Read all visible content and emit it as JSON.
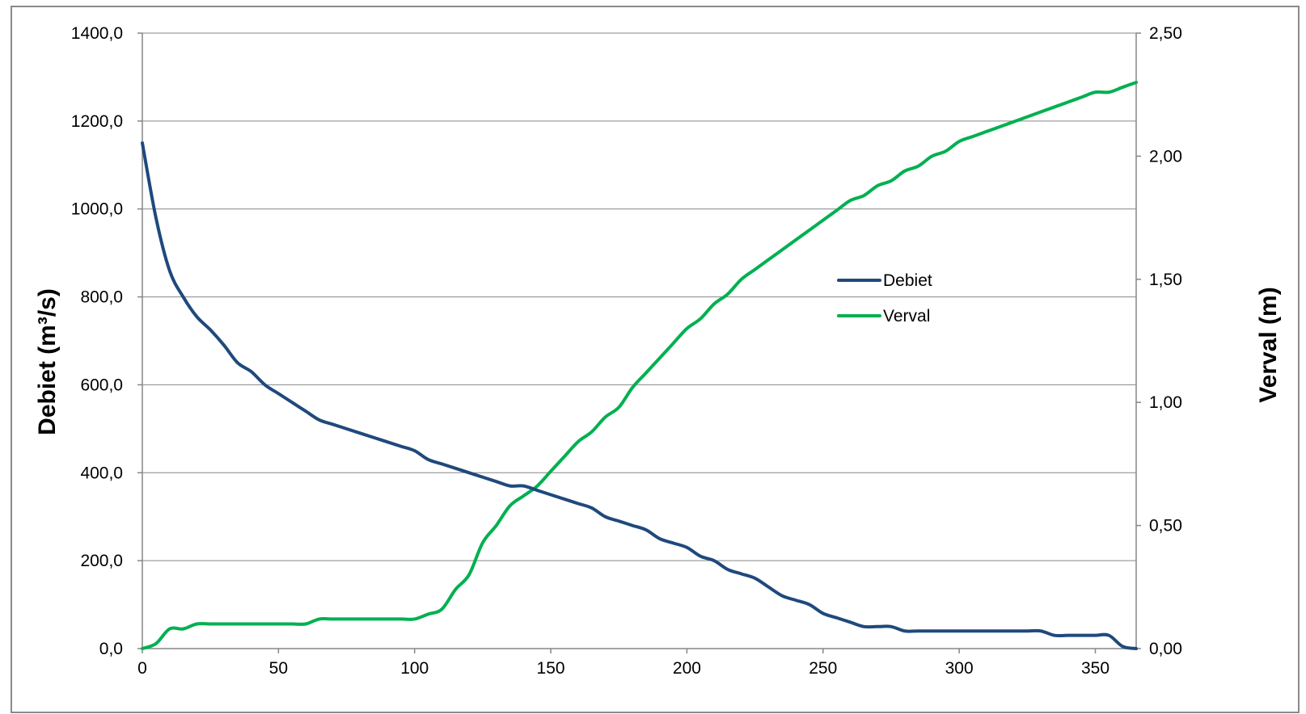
{
  "chart_data": {
    "type": "line",
    "title": "",
    "xlabel": "",
    "ylabel": "Debiet (m³/s)",
    "y2label": "Verval (m)",
    "xlim": [
      0,
      365
    ],
    "ylim": [
      0,
      1400
    ],
    "y2lim": [
      0,
      2.5
    ],
    "grid": "horizontal",
    "legend_position": "center-right",
    "x_ticks": [
      "0",
      "50",
      "100",
      "150",
      "200",
      "250",
      "300",
      "350"
    ],
    "y_ticks": [
      "0,0",
      "200,0",
      "400,0",
      "600,0",
      "800,0",
      "1000,0",
      "1200,0",
      "1400,0"
    ],
    "y2_ticks": [
      "0,00",
      "0,50",
      "1,00",
      "1,50",
      "2,00",
      "2,50"
    ],
    "series": [
      {
        "name": "Debiet",
        "axis": "left",
        "color": "#1F497D",
        "x": [
          0,
          5,
          10,
          15,
          20,
          25,
          30,
          35,
          40,
          45,
          50,
          55,
          60,
          65,
          70,
          75,
          80,
          85,
          90,
          95,
          100,
          105,
          110,
          115,
          120,
          125,
          130,
          135,
          140,
          145,
          150,
          155,
          160,
          165,
          170,
          175,
          180,
          185,
          190,
          195,
          200,
          205,
          210,
          215,
          220,
          225,
          230,
          235,
          240,
          245,
          250,
          255,
          260,
          265,
          270,
          275,
          280,
          285,
          290,
          295,
          300,
          305,
          310,
          315,
          320,
          325,
          330,
          335,
          340,
          345,
          350,
          355,
          360,
          365
        ],
        "values": [
          1150,
          980,
          860,
          800,
          755,
          725,
          690,
          650,
          630,
          600,
          580,
          560,
          540,
          520,
          510,
          500,
          490,
          480,
          470,
          460,
          450,
          430,
          420,
          410,
          400,
          390,
          380,
          370,
          370,
          360,
          350,
          340,
          330,
          320,
          300,
          290,
          280,
          270,
          250,
          240,
          230,
          210,
          200,
          180,
          170,
          160,
          140,
          120,
          110,
          100,
          80,
          70,
          60,
          50,
          50,
          50,
          40,
          40,
          40,
          40,
          40,
          40,
          40,
          40,
          40,
          40,
          40,
          30,
          30,
          30,
          30,
          30,
          5,
          0
        ]
      },
      {
        "name": "Verval",
        "axis": "right",
        "color": "#00B050",
        "x": [
          0,
          5,
          10,
          15,
          20,
          25,
          30,
          35,
          40,
          45,
          50,
          55,
          60,
          65,
          70,
          75,
          80,
          85,
          90,
          95,
          100,
          105,
          110,
          115,
          120,
          125,
          130,
          135,
          140,
          145,
          150,
          155,
          160,
          165,
          170,
          175,
          180,
          185,
          190,
          195,
          200,
          205,
          210,
          215,
          220,
          225,
          230,
          235,
          240,
          245,
          250,
          255,
          260,
          265,
          270,
          275,
          280,
          285,
          290,
          295,
          300,
          305,
          310,
          315,
          320,
          325,
          330,
          335,
          340,
          345,
          350,
          355,
          360,
          365
        ],
        "values": [
          0,
          0.02,
          0.08,
          0.08,
          0.1,
          0.1,
          0.1,
          0.1,
          0.1,
          0.1,
          0.1,
          0.1,
          0.1,
          0.12,
          0.12,
          0.12,
          0.12,
          0.12,
          0.12,
          0.12,
          0.12,
          0.14,
          0.16,
          0.24,
          0.3,
          0.43,
          0.5,
          0.58,
          0.62,
          0.66,
          0.72,
          0.78,
          0.84,
          0.88,
          0.94,
          0.98,
          1.06,
          1.12,
          1.18,
          1.24,
          1.3,
          1.34,
          1.4,
          1.44,
          1.5,
          1.54,
          1.58,
          1.62,
          1.66,
          1.7,
          1.74,
          1.78,
          1.82,
          1.84,
          1.88,
          1.9,
          1.94,
          1.96,
          2.0,
          2.02,
          2.06,
          2.08,
          2.1,
          2.12,
          2.14,
          2.16,
          2.18,
          2.2,
          2.22,
          2.24,
          2.26,
          2.26,
          2.28,
          2.3
        ]
      }
    ]
  }
}
